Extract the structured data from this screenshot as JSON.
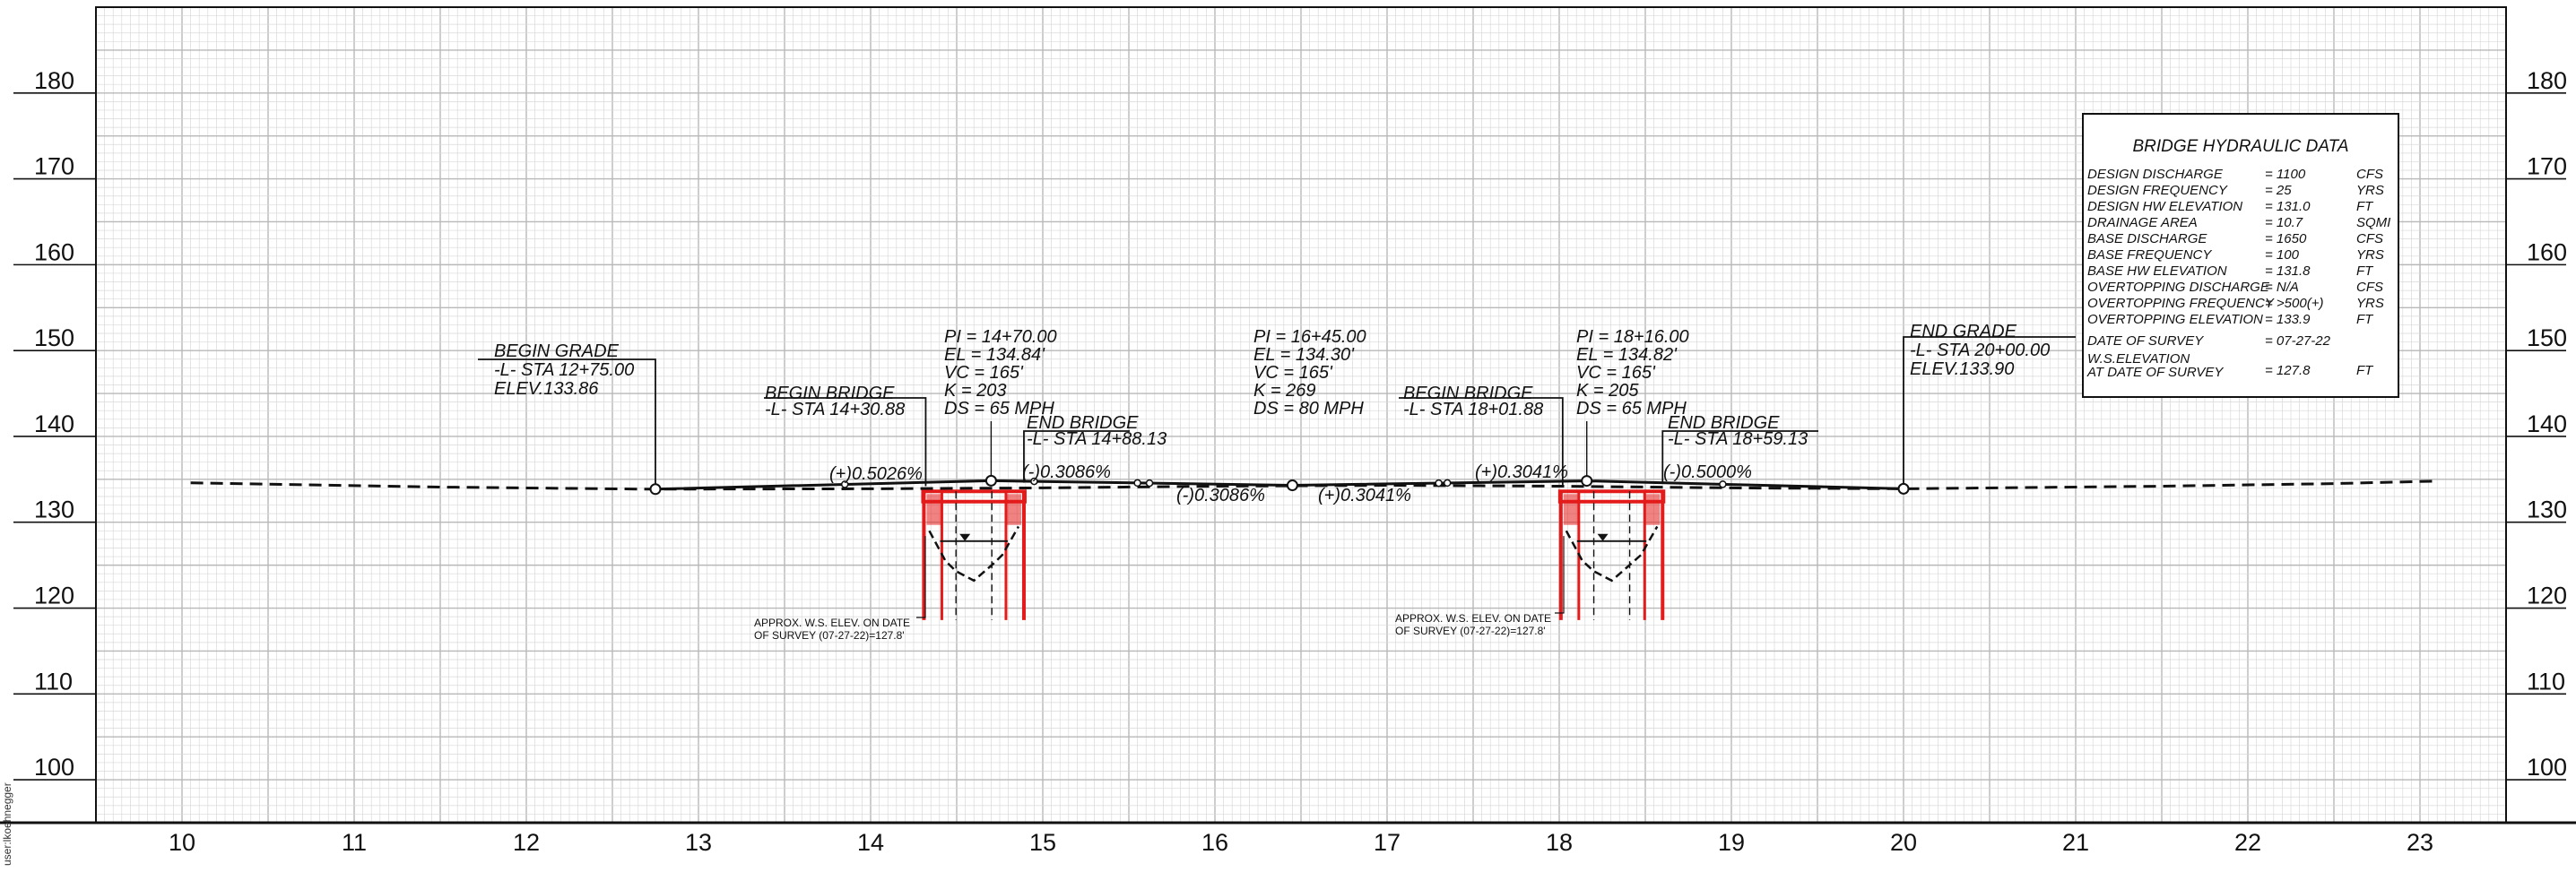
{
  "sheet": {
    "side_note": "user:lkoehnegger"
  },
  "colors": {
    "grid_minor": "#d9d9d9",
    "grid_major": "#b8b8b8",
    "line": "#111111",
    "bridge": "#e31b1b",
    "background": "#ffffff"
  },
  "axes": {
    "elevation_ticks": [
      "180",
      "170",
      "160",
      "150",
      "140",
      "130",
      "120",
      "110",
      "100"
    ],
    "elevation_range": [
      95,
      190
    ],
    "station_ticks": [
      "10",
      "11",
      "12",
      "13",
      "14",
      "15",
      "16",
      "17",
      "18",
      "19",
      "20",
      "21",
      "22",
      "23"
    ],
    "station_range": [
      9.5,
      23.5
    ]
  },
  "profile": {
    "existing_ground": [
      [
        10.05,
        134.6
      ],
      [
        11.5,
        134.1
      ],
      [
        12.7,
        133.86
      ],
      [
        14.0,
        133.9
      ],
      [
        15.0,
        134.0
      ],
      [
        16.0,
        134.2
      ],
      [
        17.0,
        134.3
      ],
      [
        18.0,
        134.2
      ],
      [
        19.0,
        134.0
      ],
      [
        20.0,
        133.9
      ],
      [
        21.5,
        134.2
      ],
      [
        22.5,
        134.5
      ],
      [
        23.1,
        134.8
      ]
    ],
    "proposed_grade": [
      [
        12.75,
        133.86
      ],
      [
        14.7,
        134.84
      ],
      [
        16.45,
        134.3
      ],
      [
        18.16,
        134.82
      ],
      [
        20.0,
        133.9
      ]
    ],
    "points": [
      12.75,
      14.7,
      16.45,
      18.16,
      20.0
    ]
  },
  "callouts": {
    "begin_grade": [
      "BEGIN GRADE",
      "-L- STA 12+75.00",
      "ELEV.133.86"
    ],
    "begin_bridge_1": [
      "BEGIN BRIDGE",
      "-L- STA 14+30.88"
    ],
    "end_bridge_1": [
      "END BRIDGE",
      "-L- STA 14+88.13"
    ],
    "begin_bridge_2": [
      "BEGIN BRIDGE",
      "-L- STA 18+01.88"
    ],
    "end_bridge_2": [
      "END BRIDGE",
      "-L- STA 18+59.13"
    ],
    "end_grade": [
      "END GRADE",
      "-L- STA 20+00.00",
      "ELEV.133.90"
    ]
  },
  "curves": [
    [
      "PI = 14+70.00",
      "EL = 134.84'",
      "VC = 165'",
      "K = 203",
      "DS = 65 MPH"
    ],
    [
      "PI = 16+45.00",
      "EL = 134.30'",
      "VC = 165'",
      "K = 269",
      "DS = 80 MPH"
    ],
    [
      "PI = 18+16.00",
      "EL = 134.82'",
      "VC = 165'",
      "K = 205",
      "DS = 65 MPH"
    ]
  ],
  "grades": [
    "(+)0.5026%",
    "(-)0.3086%",
    "(-)0.3086%",
    "(+)0.3041%",
    "(+)0.3041%",
    "(-)0.5000%"
  ],
  "water_notes": [
    [
      "APPROX. W.S. ELEV. ON DATE",
      "OF SURVEY (07-27-22)=127.8'"
    ],
    [
      "APPROX. W.S. ELEV. ON DATE",
      "OF SURVEY (07-27-22)=127.8'"
    ]
  ],
  "hydraulic_table": {
    "title": "BRIDGE HYDRAULIC DATA",
    "rows": [
      [
        "DESIGN DISCHARGE",
        "= 1100",
        "CFS"
      ],
      [
        "DESIGN FREQUENCY",
        "= 25",
        "YRS"
      ],
      [
        "DESIGN HW ELEVATION",
        "= 131.0",
        "FT"
      ],
      [
        "DRAINAGE AREA",
        "= 10.7",
        "SQMI"
      ],
      [
        "BASE DISCHARGE",
        "= 1650",
        "CFS"
      ],
      [
        "BASE FREQUENCY",
        "= 100",
        "YRS"
      ],
      [
        "BASE HW ELEVATION",
        "= 131.8",
        "FT"
      ],
      [
        "OVERTOPPING DISCHARGE",
        "= N/A",
        "CFS"
      ],
      [
        "OVERTOPPING FREQUENCY",
        "= >500(+)",
        "YRS"
      ],
      [
        "OVERTOPPING ELEVATION",
        "= 133.9",
        "FT"
      ]
    ],
    "survey_date_label": "DATE OF SURVEY",
    "survey_date_value": "= 07-27-22",
    "ws_label_1": "W.S.ELEVATION",
    "ws_label_2": "AT DATE OF SURVEY",
    "ws_value": "= 127.8",
    "ws_unit": "FT"
  }
}
